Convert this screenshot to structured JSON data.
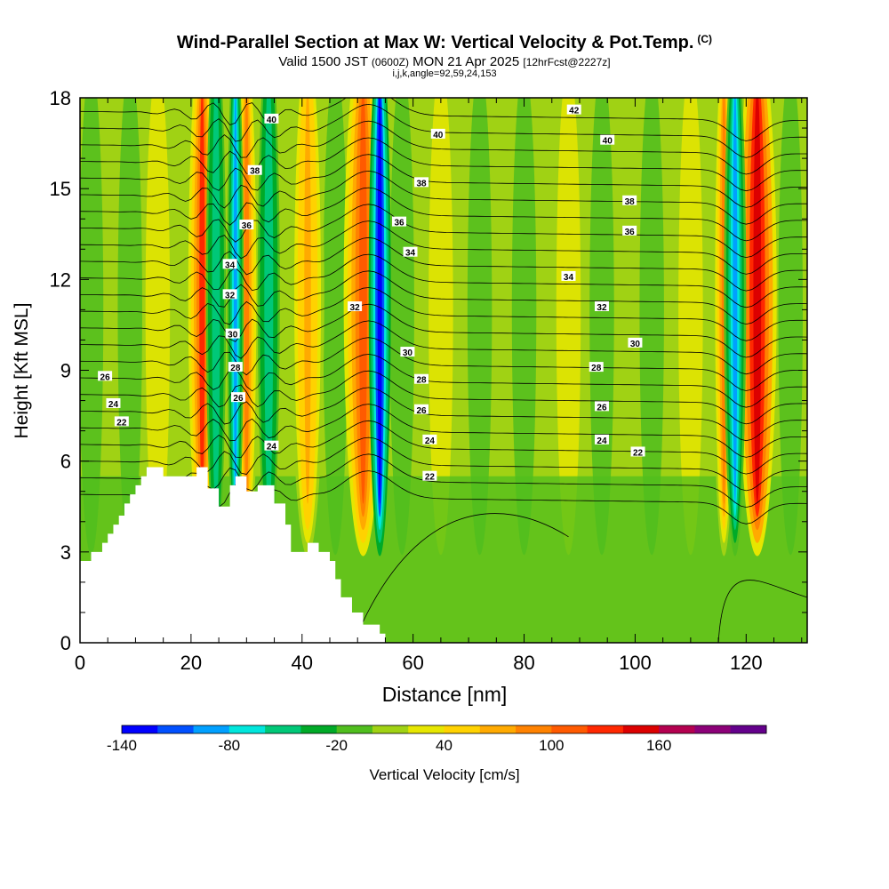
{
  "chart_data": {
    "type": "heatmap",
    "title": "Wind-Parallel Section at Max W: Vertical Velocity & Pot.Temp.",
    "copyright": "(C)",
    "subtitle_parts": [
      "Valid 1500 JST ",
      "(0600Z)",
      " MON 21 Apr 2025 ",
      "[12hrFcst@2227z]"
    ],
    "subtitle2": "i,j,k,angle=92,59,24,153",
    "xlabel": "Distance [nm]",
    "ylabel": "Height [Kft MSL]",
    "xlim": [
      0,
      131
    ],
    "ylim": [
      0,
      18
    ],
    "xticks": [
      0,
      20,
      40,
      60,
      80,
      100,
      120
    ],
    "yticks": [
      0,
      3,
      6,
      9,
      12,
      15,
      18
    ],
    "colorbar": {
      "label": "Vertical Velocity [cm/s]",
      "colors": [
        "#0000ff",
        "#0050ff",
        "#00a0ff",
        "#00e6dc",
        "#00c878",
        "#00aa28",
        "#50be1e",
        "#a0d214",
        "#e6e600",
        "#ffd200",
        "#ffaa00",
        "#ff8200",
        "#ff5a00",
        "#ff2800",
        "#dc0000",
        "#b40050",
        "#8c0078",
        "#64008c"
      ],
      "tick_labels": [
        "-140",
        "-80",
        "-20",
        "40",
        "100",
        "160"
      ],
      "tick_index": [
        0,
        3,
        6,
        9,
        12,
        15
      ]
    },
    "updraft_columns": [
      {
        "x": 22,
        "w": 120,
        "width": 2.5
      },
      {
        "x": 30,
        "w": 90,
        "width": 2.2
      },
      {
        "x": 41,
        "w": 70,
        "width": 3
      },
      {
        "x": 51,
        "w": 110,
        "width": 3.5
      },
      {
        "x": 116,
        "w": 80,
        "width": 2
      },
      {
        "x": 122,
        "w": 150,
        "width": 3.5
      }
    ],
    "downdraft_columns": [
      {
        "x": 24.5,
        "w": -60,
        "width": 1.8
      },
      {
        "x": 28,
        "w": -100,
        "width": 1.5
      },
      {
        "x": 34,
        "w": -60,
        "width": 2
      },
      {
        "x": 54,
        "w": -130,
        "width": 2
      },
      {
        "x": 118,
        "w": -90,
        "width": 2
      }
    ],
    "theta_labels": [
      {
        "text": "26",
        "x": 4.5,
        "y": 8.8
      },
      {
        "text": "24",
        "x": 6,
        "y": 7.9
      },
      {
        "text": "22",
        "x": 7.5,
        "y": 7.3
      },
      {
        "text": "24",
        "x": 34.5,
        "y": 6.5
      },
      {
        "text": "26",
        "x": 28.5,
        "y": 8.1
      },
      {
        "text": "28",
        "x": 28,
        "y": 9.1
      },
      {
        "text": "30",
        "x": 27.5,
        "y": 10.2
      },
      {
        "text": "32",
        "x": 27,
        "y": 11.5
      },
      {
        "text": "34",
        "x": 27,
        "y": 12.5
      },
      {
        "text": "36",
        "x": 30,
        "y": 13.8
      },
      {
        "text": "38",
        "x": 31.5,
        "y": 15.6
      },
      {
        "text": "40",
        "x": 34.5,
        "y": 17.3
      },
      {
        "text": "32",
        "x": 49.5,
        "y": 11.1
      },
      {
        "text": "30",
        "x": 59,
        "y": 9.6
      },
      {
        "text": "28",
        "x": 61.5,
        "y": 8.7
      },
      {
        "text": "26",
        "x": 61.5,
        "y": 7.7
      },
      {
        "text": "24",
        "x": 63,
        "y": 6.7
      },
      {
        "text": "22",
        "x": 63,
        "y": 5.5
      },
      {
        "text": "34",
        "x": 59.5,
        "y": 12.9
      },
      {
        "text": "36",
        "x": 57.5,
        "y": 13.9
      },
      {
        "text": "38",
        "x": 61.5,
        "y": 15.2
      },
      {
        "text": "40",
        "x": 64.5,
        "y": 16.8
      },
      {
        "text": "42",
        "x": 89,
        "y": 17.6
      },
      {
        "text": "40",
        "x": 95,
        "y": 16.6
      },
      {
        "text": "38",
        "x": 99,
        "y": 14.6
      },
      {
        "text": "36",
        "x": 99,
        "y": 13.6
      },
      {
        "text": "34",
        "x": 88,
        "y": 12.1
      },
      {
        "text": "32",
        "x": 94,
        "y": 11.1
      },
      {
        "text": "30",
        "x": 100,
        "y": 9.9
      },
      {
        "text": "28",
        "x": 93,
        "y": 9.1
      },
      {
        "text": "26",
        "x": 94,
        "y": 7.8
      },
      {
        "text": "24",
        "x": 94,
        "y": 6.7
      },
      {
        "text": "22",
        "x": 100.5,
        "y": 6.3
      }
    ]
  }
}
